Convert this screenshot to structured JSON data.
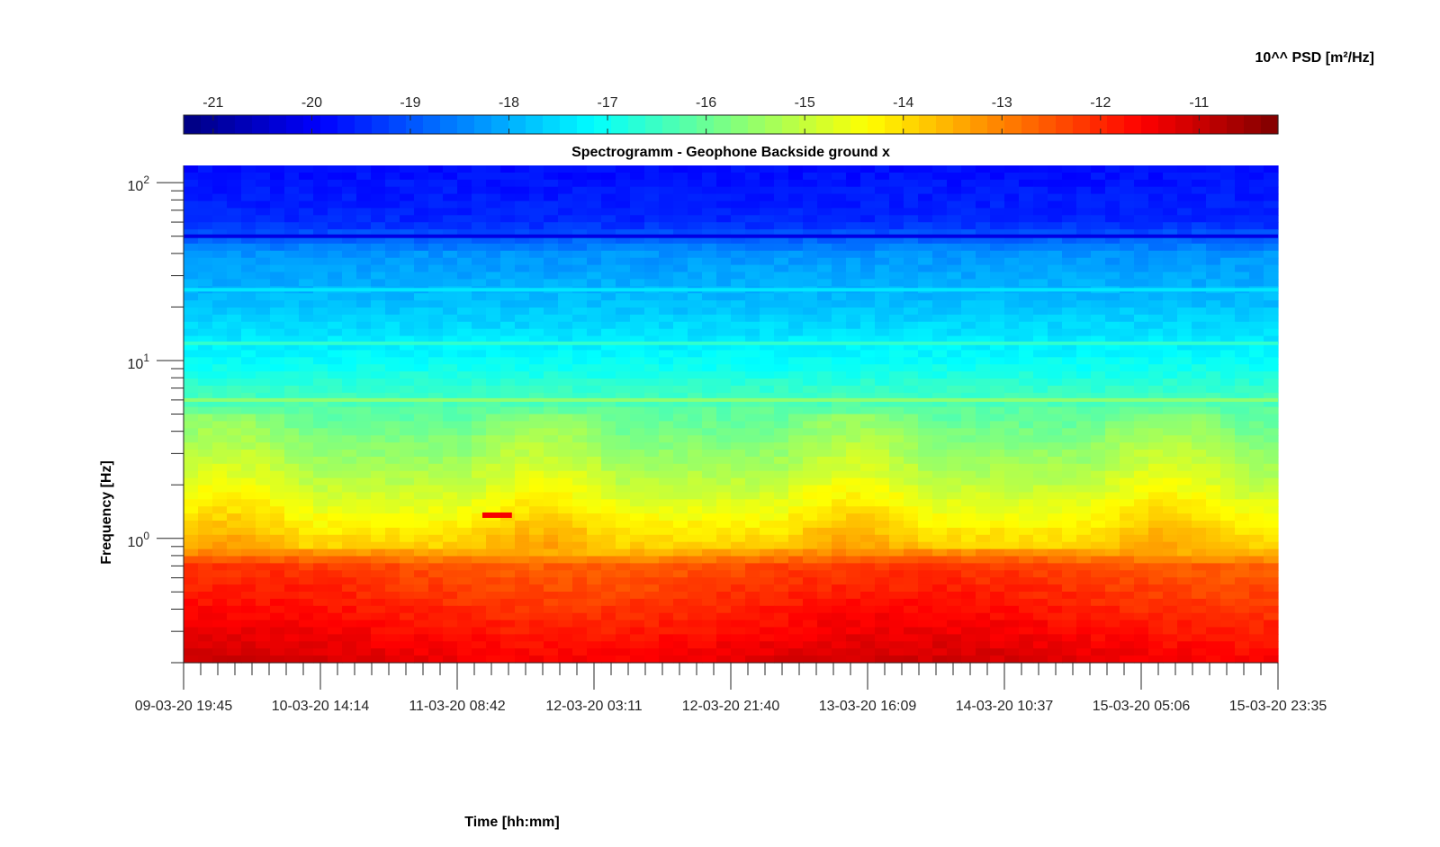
{
  "chart_data": {
    "type": "heatmap",
    "title": "Spectrogramm - Geophone Backside ground x",
    "xlabel": "Time [hh:mm]",
    "ylabel": "Frequency [Hz]",
    "x_ticks": [
      "09-03-20 19:45",
      "10-03-20 14:14",
      "11-03-20 08:42",
      "12-03-20 03:11",
      "12-03-20 21:40",
      "13-03-20 16:09",
      "14-03-20 10:37",
      "15-03-20 05:06",
      "15-03-20 23:35"
    ],
    "y_scale": "log",
    "y_ticks": [
      {
        "base": "10",
        "exp": "0",
        "value": 1
      },
      {
        "base": "10",
        "exp": "1",
        "value": 10
      },
      {
        "base": "10",
        "exp": "2",
        "value": 100
      }
    ],
    "ylim": [
      0.2,
      125
    ],
    "colorbar": {
      "label": "10^^ PSD [m²/Hz]",
      "ticks": [
        -21,
        -20,
        -19,
        -18,
        -17,
        -16,
        -15,
        -14,
        -13,
        -12,
        -11
      ],
      "range": [
        -21.3,
        -10.2
      ],
      "colormap": "jet"
    },
    "psd_profile": [
      {
        "freq_hz": 0.2,
        "log10_psd": -11.3
      },
      {
        "freq_hz": 0.4,
        "log10_psd": -11.9
      },
      {
        "freq_hz": 0.7,
        "log10_psd": -12.4
      },
      {
        "freq_hz": 0.9,
        "log10_psd": -13.7
      },
      {
        "freq_hz": 2,
        "log10_psd": -14.9
      },
      {
        "freq_hz": 5,
        "log10_psd": -16.0
      },
      {
        "freq_hz": 6,
        "log10_psd": -16.4
      },
      {
        "freq_hz": 10,
        "log10_psd": -17.1
      },
      {
        "freq_hz": 20,
        "log10_psd": -17.8
      },
      {
        "freq_hz": 40,
        "log10_psd": -18.3
      },
      {
        "freq_hz": 60,
        "log10_psd": -19.5
      },
      {
        "freq_hz": 125,
        "log10_psd": -19.8
      }
    ],
    "spectral_lines": [
      {
        "freq_hz": 6.0,
        "log10_psd": -15.6
      },
      {
        "freq_hz": 12.5,
        "log10_psd": -16.6
      },
      {
        "freq_hz": 25,
        "log10_psd": -17.4
      },
      {
        "freq_hz": 50,
        "log10_psd": -20.2
      }
    ],
    "events": [
      {
        "label": "",
        "freq_hz": 1.35,
        "log10_psd": -11.5
      }
    ],
    "grid": false
  }
}
